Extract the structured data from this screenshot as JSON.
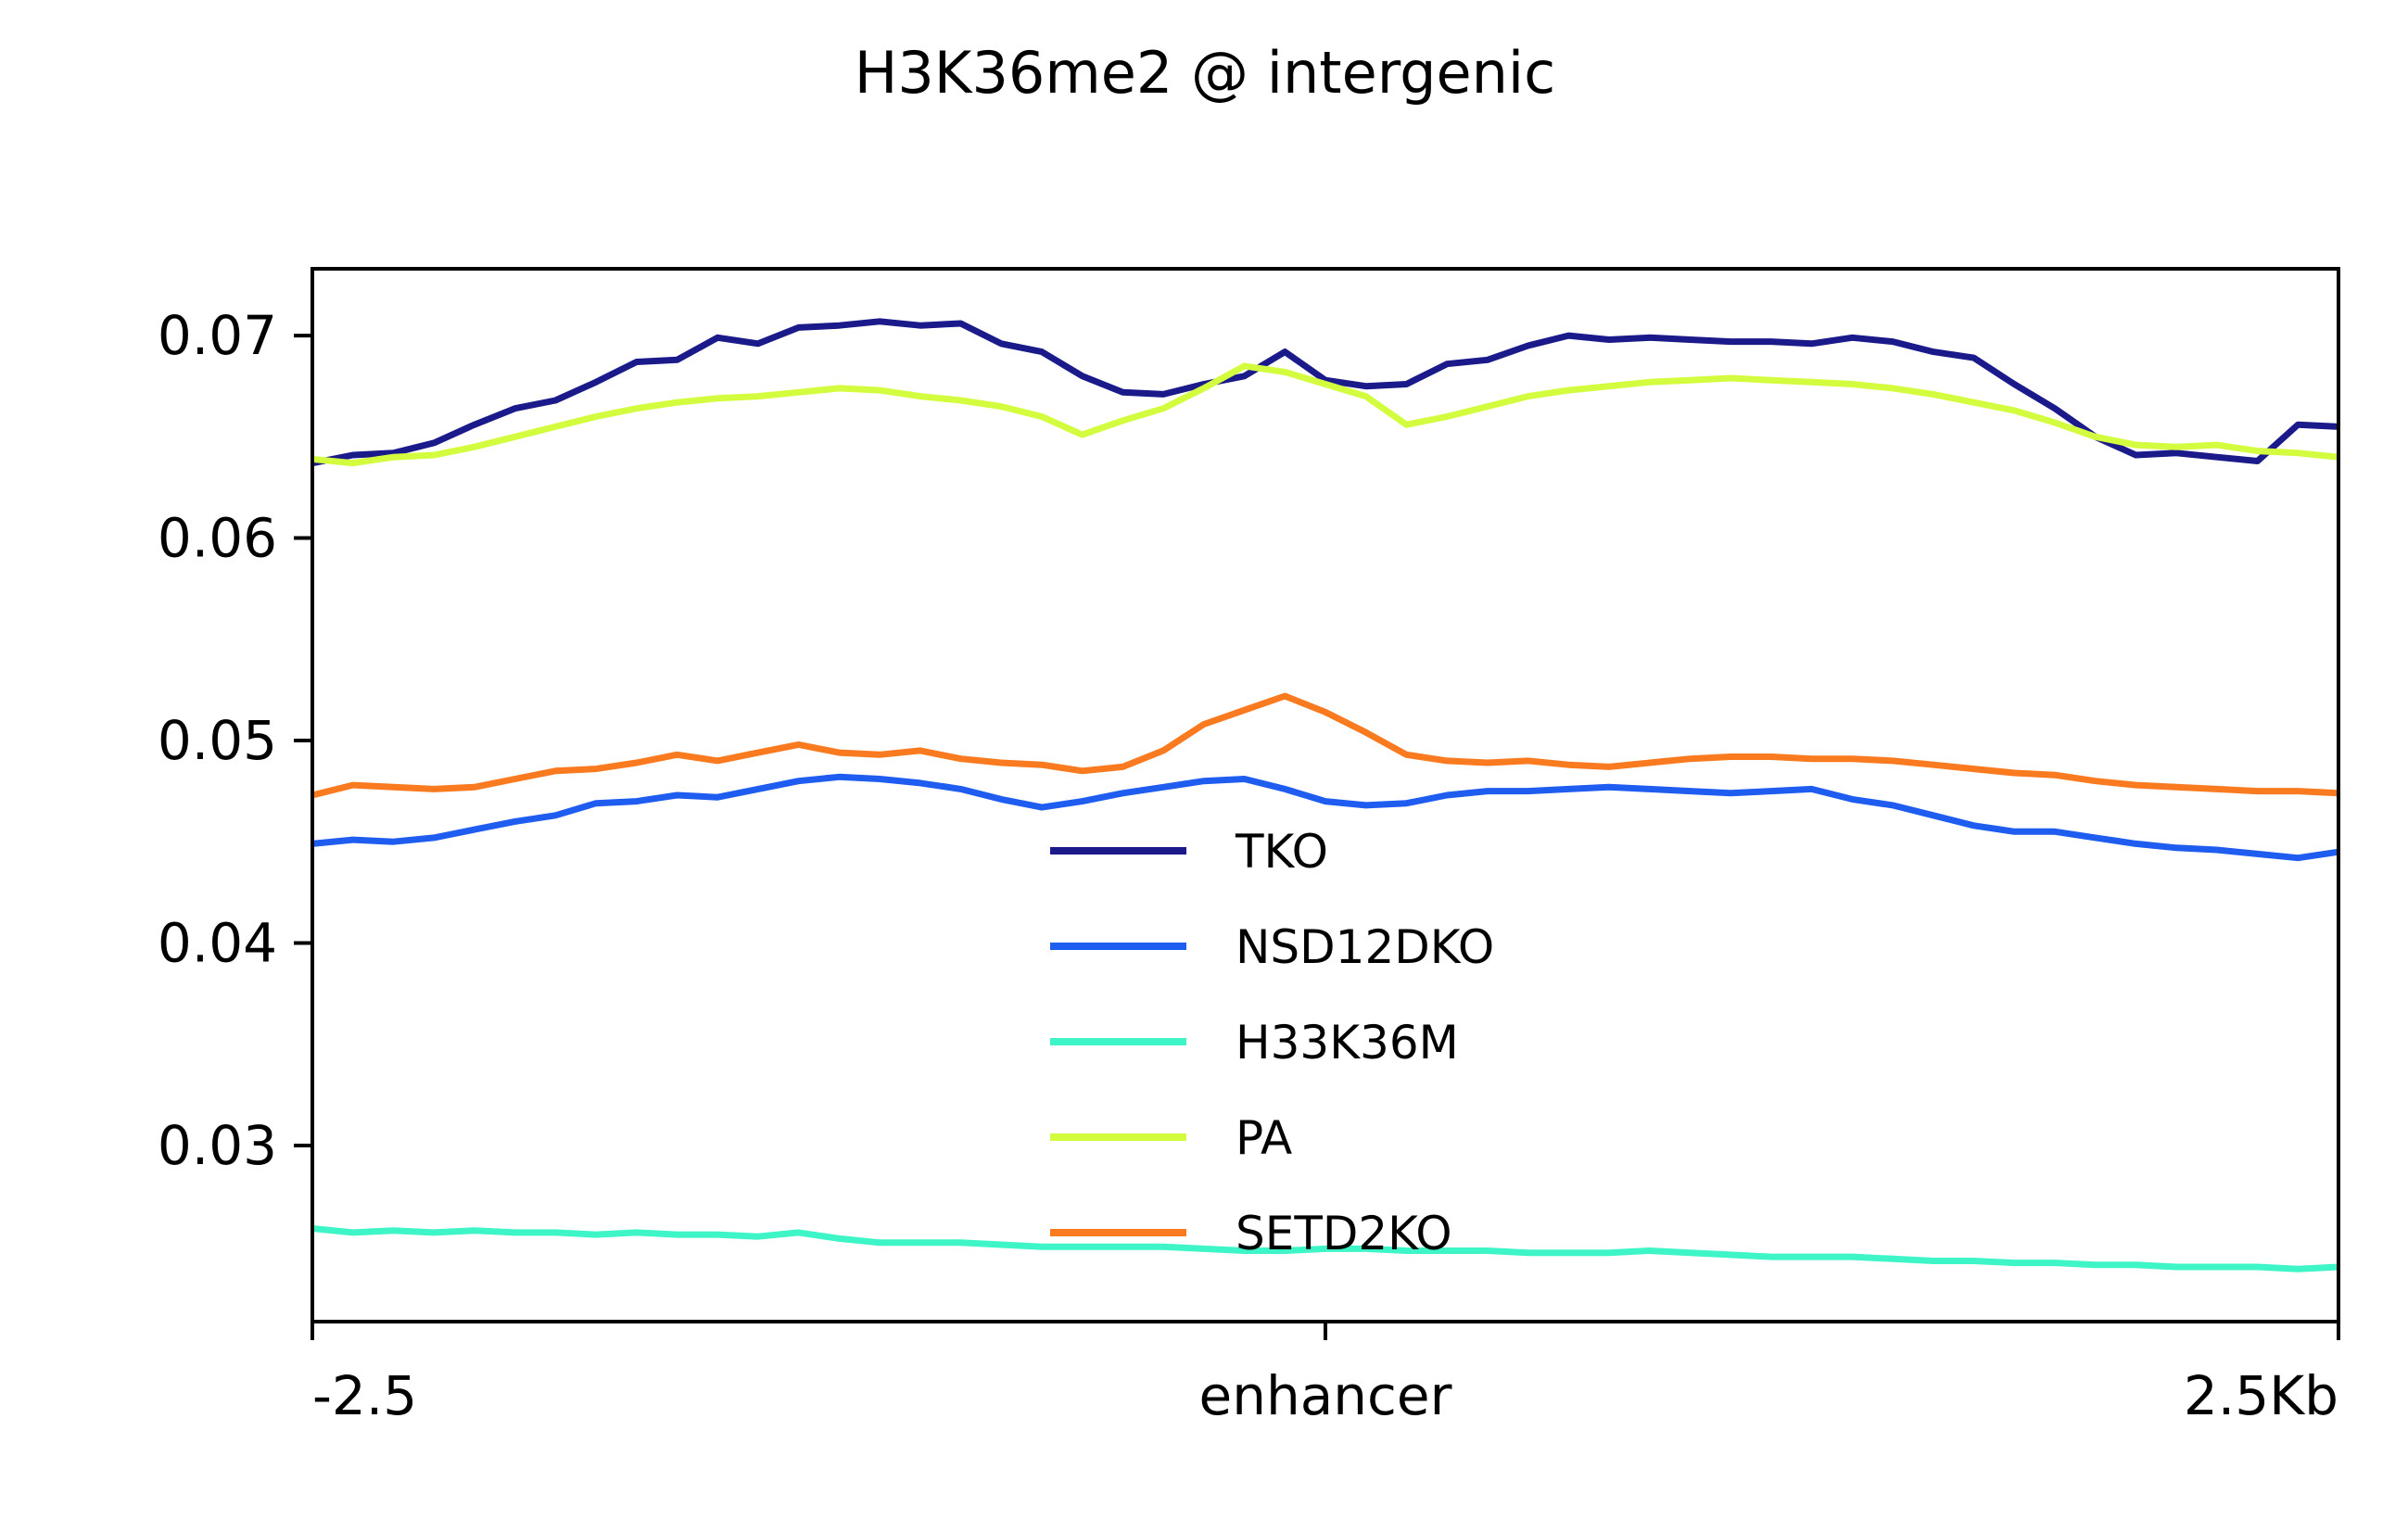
{
  "chart_data": {
    "type": "line",
    "title": "H3K36me2 @ intergenic",
    "xlabel": "",
    "ylabel": "",
    "x_ticks": [
      "-2.5",
      "enhancer",
      "2.5Kb"
    ],
    "y_ticks": [
      "0.07",
      "0.06",
      "0.05",
      "0.04",
      "0.03"
    ],
    "xlim": [
      -2.5,
      2.5
    ],
    "ylim": [
      0.0213,
      0.0733
    ],
    "grid": false,
    "legend_position": "center",
    "x": [
      -2.5,
      -2.4,
      -2.3,
      -2.2,
      -2.1,
      -2.0,
      -1.9,
      -1.8,
      -1.7,
      -1.6,
      -1.5,
      -1.4,
      -1.3,
      -1.2,
      -1.1,
      -1.0,
      -0.9,
      -0.8,
      -0.7,
      -0.6,
      -0.5,
      -0.4,
      -0.3,
      -0.2,
      -0.1,
      0.0,
      0.1,
      0.2,
      0.3,
      0.4,
      0.5,
      0.6,
      0.7,
      0.8,
      0.9,
      1.0,
      1.1,
      1.2,
      1.3,
      1.4,
      1.5,
      1.6,
      1.7,
      1.8,
      1.9,
      2.0,
      2.1,
      2.2,
      2.3,
      2.4,
      2.5
    ],
    "series": [
      {
        "name": "TKO",
        "color": "#1b1a8a",
        "values": [
          0.0637,
          0.0641,
          0.0642,
          0.0647,
          0.0656,
          0.0664,
          0.0668,
          0.0677,
          0.0687,
          0.0688,
          0.0699,
          0.0696,
          0.0704,
          0.0705,
          0.0707,
          0.0705,
          0.0706,
          0.0696,
          0.0692,
          0.068,
          0.0672,
          0.0671,
          0.0676,
          0.068,
          0.0692,
          0.0678,
          0.0675,
          0.0676,
          0.0686,
          0.0688,
          0.0695,
          0.07,
          0.0698,
          0.0699,
          0.0698,
          0.0697,
          0.0697,
          0.0696,
          0.0699,
          0.0697,
          0.0692,
          0.0689,
          0.0676,
          0.0664,
          0.065,
          0.0641,
          0.0642,
          0.064,
          0.0638,
          0.0656,
          0.0655
        ]
      },
      {
        "name": "NSD12DKO",
        "color": "#1f5cf0",
        "values": [
          0.0449,
          0.0451,
          0.045,
          0.0452,
          0.0456,
          0.046,
          0.0463,
          0.0469,
          0.047,
          0.0473,
          0.0472,
          0.0476,
          0.048,
          0.0482,
          0.0481,
          0.0479,
          0.0476,
          0.0471,
          0.0467,
          0.047,
          0.0474,
          0.0477,
          0.048,
          0.0481,
          0.0476,
          0.047,
          0.0468,
          0.0469,
          0.0473,
          0.0475,
          0.0475,
          0.0476,
          0.0477,
          0.0476,
          0.0475,
          0.0474,
          0.0475,
          0.0476,
          0.0471,
          0.0468,
          0.0463,
          0.0458,
          0.0455,
          0.0455,
          0.0452,
          0.0449,
          0.0447,
          0.0446,
          0.0444,
          0.0442,
          0.0445
        ]
      },
      {
        "name": "H33K36M",
        "color": "#3ef5c8",
        "values": [
          0.0259,
          0.0257,
          0.0258,
          0.0257,
          0.0258,
          0.0257,
          0.0257,
          0.0256,
          0.0257,
          0.0256,
          0.0256,
          0.0255,
          0.0257,
          0.0254,
          0.0252,
          0.0252,
          0.0252,
          0.0251,
          0.025,
          0.025,
          0.025,
          0.025,
          0.0249,
          0.0248,
          0.0248,
          0.0249,
          0.0249,
          0.0248,
          0.0248,
          0.0248,
          0.0247,
          0.0247,
          0.0247,
          0.0248,
          0.0247,
          0.0246,
          0.0245,
          0.0245,
          0.0245,
          0.0244,
          0.0243,
          0.0243,
          0.0242,
          0.0242,
          0.0241,
          0.0241,
          0.024,
          0.024,
          0.024,
          0.0239,
          0.024
        ]
      },
      {
        "name": "PA",
        "color": "#d4fc3e",
        "values": [
          0.0639,
          0.0637,
          0.064,
          0.0641,
          0.0645,
          0.065,
          0.0655,
          0.066,
          0.0664,
          0.0667,
          0.0669,
          0.067,
          0.0672,
          0.0674,
          0.0673,
          0.067,
          0.0668,
          0.0665,
          0.066,
          0.0651,
          0.0658,
          0.0664,
          0.0674,
          0.0685,
          0.0682,
          0.0676,
          0.067,
          0.0656,
          0.066,
          0.0665,
          0.067,
          0.0673,
          0.0675,
          0.0677,
          0.0678,
          0.0679,
          0.0678,
          0.0677,
          0.0676,
          0.0674,
          0.0671,
          0.0667,
          0.0663,
          0.0657,
          0.065,
          0.0646,
          0.0645,
          0.0646,
          0.0643,
          0.0642,
          0.064
        ]
      },
      {
        "name": "SETD2KO",
        "color": "#f97a1f",
        "values": [
          0.0473,
          0.0478,
          0.0477,
          0.0476,
          0.0477,
          0.0481,
          0.0485,
          0.0486,
          0.0489,
          0.0493,
          0.049,
          0.0494,
          0.0498,
          0.0494,
          0.0493,
          0.0495,
          0.0491,
          0.0489,
          0.0488,
          0.0485,
          0.0487,
          0.0495,
          0.0508,
          0.0515,
          0.0522,
          0.0514,
          0.0504,
          0.0493,
          0.049,
          0.0489,
          0.049,
          0.0488,
          0.0487,
          0.0489,
          0.0491,
          0.0492,
          0.0492,
          0.0491,
          0.0491,
          0.049,
          0.0488,
          0.0486,
          0.0484,
          0.0483,
          0.048,
          0.0478,
          0.0477,
          0.0476,
          0.0475,
          0.0475,
          0.0474
        ]
      }
    ]
  }
}
